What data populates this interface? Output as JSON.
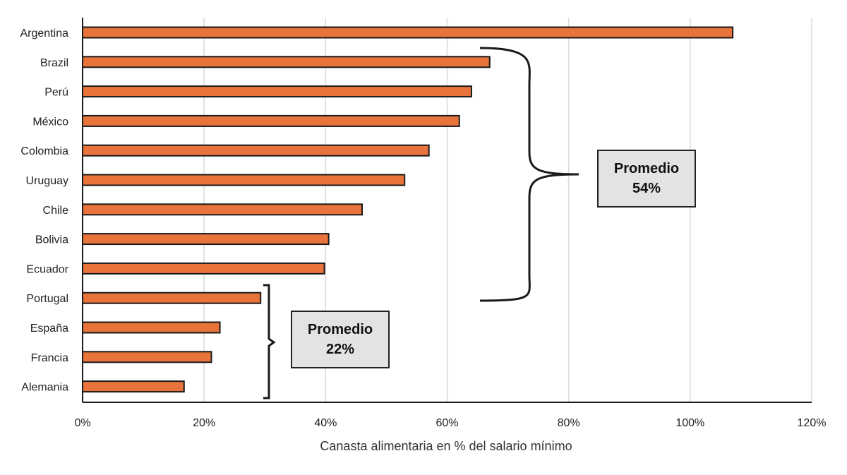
{
  "chart_data": {
    "type": "bar",
    "orientation": "horizontal",
    "categories": [
      "Argentina",
      "Brazil",
      "Perú",
      "México",
      "Colombia",
      "Uruguay",
      "Chile",
      "Bolivia",
      "Ecuador",
      "Portugal",
      "España",
      "Francia",
      "Alemania"
    ],
    "values": [
      107,
      67,
      64,
      62,
      57,
      53,
      46,
      40.5,
      39.8,
      29.3,
      22.6,
      21.2,
      16.7
    ],
    "unit": "%",
    "xlabel": "Canasta alimentaria en % del salario mínimo",
    "xlim": [
      0,
      120
    ],
    "xticks": [
      0,
      20,
      40,
      60,
      80,
      100,
      120
    ],
    "xtick_labels": [
      "0%",
      "20%",
      "40%",
      "60%",
      "80%",
      "100%",
      "120%"
    ],
    "grid": "vertical",
    "bar_color": "#e8743b",
    "bar_edge_color": "#1a1a1a",
    "annotations": [
      {
        "group": [
          "Brazil",
          "Perú",
          "México",
          "Colombia",
          "Uruguay",
          "Chile",
          "Bolivia",
          "Ecuador"
        ],
        "line1": "Promedio",
        "line2": "54%",
        "value": 54
      },
      {
        "group": [
          "Portugal",
          "España",
          "Francia",
          "Alemania"
        ],
        "line1": "Promedio",
        "line2": "22%",
        "value": 22
      }
    ]
  }
}
